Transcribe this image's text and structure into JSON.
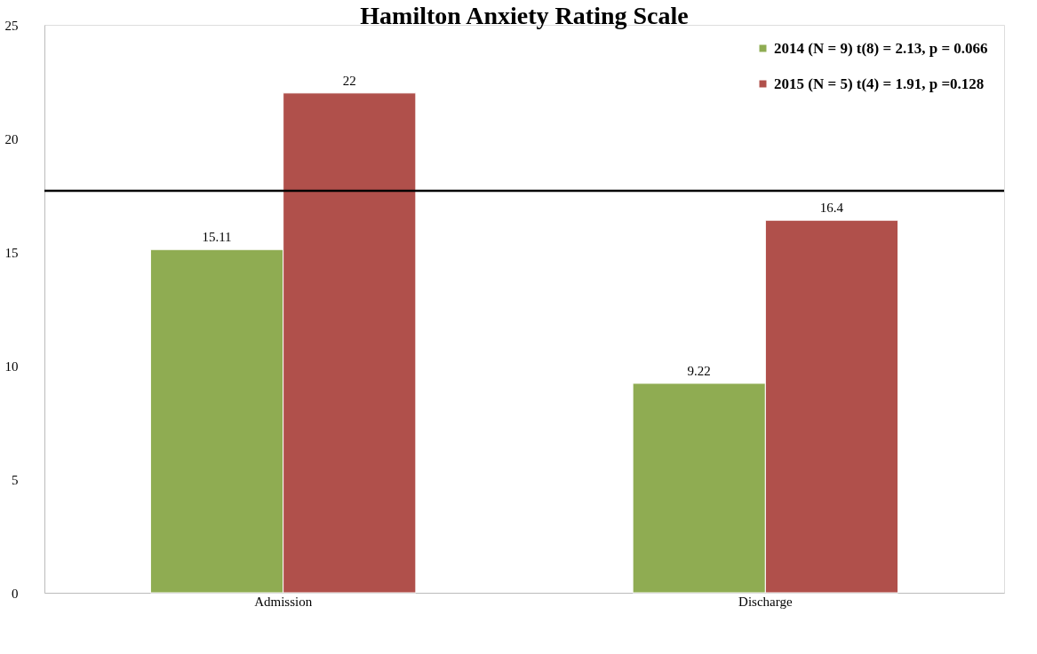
{
  "chart_data": {
    "type": "bar",
    "title": "Hamilton Anxiety Rating Scale",
    "categories": [
      "Admission",
      "Discharge"
    ],
    "series": [
      {
        "name": "2014 (N = 9) t(8) = 2.13, p = 0.066",
        "color": "#8fac52",
        "values": [
          15.11,
          9.22
        ]
      },
      {
        "name": "2015 (N = 5) t(4) = 1.91, p =0.128",
        "color": "#b0504b",
        "values": [
          22,
          16.4
        ]
      }
    ],
    "ylim": [
      0,
      25
    ],
    "yticks": [
      0,
      5,
      10,
      15,
      20,
      25
    ],
    "grid": false,
    "legend": "top right",
    "data_labels": true,
    "ref_lines": [
      {
        "axis": "y",
        "value": 17.7,
        "color": "#000000"
      }
    ]
  }
}
